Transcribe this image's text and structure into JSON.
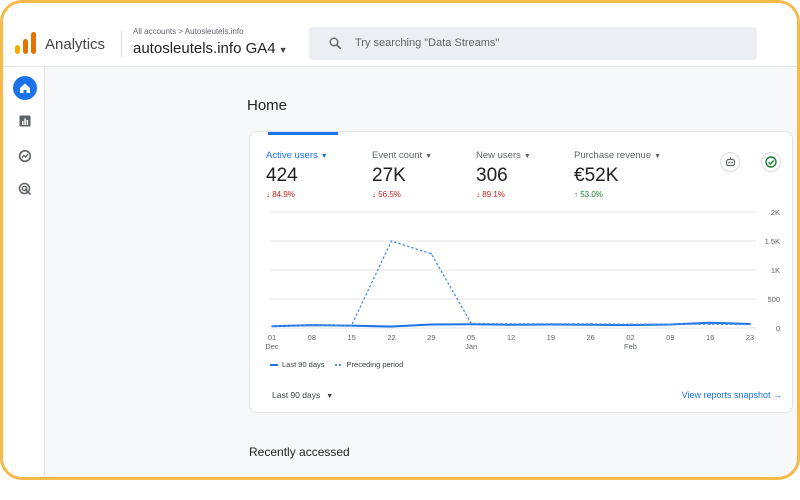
{
  "app": {
    "name": "Analytics",
    "logo_colors": [
      "#f9ab00",
      "#e37400",
      "#e37400"
    ]
  },
  "header": {
    "breadcrumb": "All accounts > Autosleutels.info",
    "property": "autosleutels.info GA4",
    "search_placeholder": "Try searching \"Data Streams\""
  },
  "rail": {
    "items": [
      "home-icon",
      "reports-icon",
      "explore-icon",
      "advertising-icon"
    ],
    "active": "home-icon"
  },
  "page": {
    "title": "Home",
    "recently_accessed": "Recently accessed"
  },
  "metrics": [
    {
      "label": "Active users",
      "value": "424",
      "delta": "↓ 84.9%",
      "direction": "down",
      "active": true
    },
    {
      "label": "Event count",
      "value": "27K",
      "delta": "↓ 56.5%",
      "direction": "down",
      "active": false
    },
    {
      "label": "New users",
      "value": "306",
      "delta": "↓ 89.1%",
      "direction": "down",
      "active": false
    },
    {
      "label": "Purchase revenue",
      "value": "€52K",
      "delta": "↑ 53.0%",
      "direction": "up",
      "active": false
    }
  ],
  "colors": {
    "accent": "#1a73e8",
    "down": "#c5221f",
    "up": "#188038",
    "frame": "#f6b94a"
  },
  "chart_data": {
    "type": "line",
    "x": [
      "01 Dec",
      "08",
      "15",
      "22",
      "29",
      "05 Jan",
      "12",
      "19",
      "26",
      "02 Feb",
      "09",
      "16",
      "23"
    ],
    "x_tick_labels": [
      [
        "01",
        "Dec"
      ],
      [
        "08",
        ""
      ],
      [
        "15",
        ""
      ],
      [
        "22",
        ""
      ],
      [
        "29",
        ""
      ],
      [
        "05",
        "Jan"
      ],
      [
        "12",
        ""
      ],
      [
        "19",
        ""
      ],
      [
        "26",
        ""
      ],
      [
        "02",
        "Feb"
      ],
      [
        "09",
        ""
      ],
      [
        "16",
        ""
      ],
      [
        "23",
        ""
      ]
    ],
    "y_ticks": [
      "0",
      "500",
      "1K",
      "1.5K",
      "2K"
    ],
    "ylim": [
      0,
      2000
    ],
    "series": [
      {
        "name": "Last 90 days",
        "style": "solid",
        "values": [
          30,
          50,
          40,
          25,
          60,
          65,
          55,
          60,
          55,
          50,
          60,
          90,
          70
        ]
      },
      {
        "name": "Preceding period",
        "style": "dashed",
        "values": [
          30,
          40,
          50,
          1500,
          1280,
          80,
          70,
          70,
          70,
          65,
          65,
          65,
          60
        ]
      }
    ],
    "legend_position": "bottom-left",
    "grid": true
  },
  "footer": {
    "range_label": "Last 90 days",
    "snapshot_link": "View reports snapshot →"
  }
}
